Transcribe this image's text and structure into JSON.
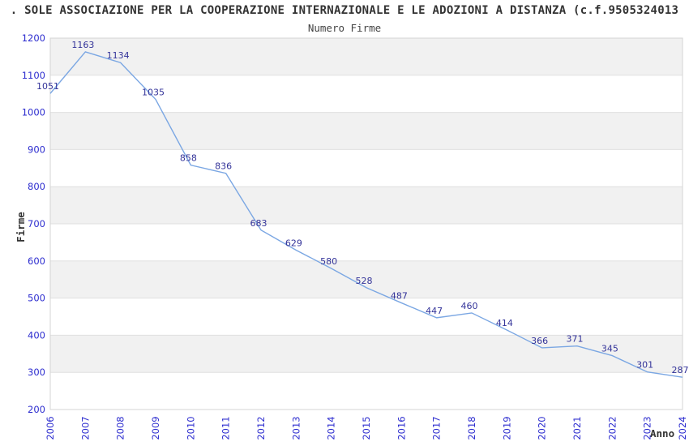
{
  "header": {
    "title": ". SOLE ASSOCIAZIONE PER LA COOPERAZIONE INTERNAZIONALE E LE ADOZIONI A DISTANZA (c.f.9505324013",
    "subtitle": "Numero Firme"
  },
  "chart_data": {
    "type": "line",
    "title": "Numero Firme",
    "xlabel": "Anno",
    "ylabel": "Firme",
    "categories": [
      "2006",
      "2007",
      "2008",
      "2009",
      "2010",
      "2011",
      "2012",
      "2013",
      "2014",
      "2015",
      "2016",
      "2017",
      "2018",
      "2019",
      "2020",
      "2021",
      "2022",
      "2023",
      "2024"
    ],
    "series": [
      {
        "name": "Numero Firme",
        "values": [
          1051,
          1163,
          1134,
          1035,
          858,
          836,
          683,
          629,
          580,
          528,
          487,
          447,
          460,
          414,
          366,
          371,
          345,
          301,
          287
        ]
      }
    ],
    "ylim": [
      200,
      1200
    ],
    "ytick_step": 100,
    "grid": true,
    "legend": false,
    "point_labels": true,
    "colors": {
      "line": "#7ba7e3",
      "tick_label": "#2d2dcf",
      "value_label": "#333399",
      "band": "#f1f1f1",
      "band_alt": "#ffffff",
      "grid": "#e0e0e0",
      "border": "#d4d4d4",
      "title": "#333333"
    }
  }
}
